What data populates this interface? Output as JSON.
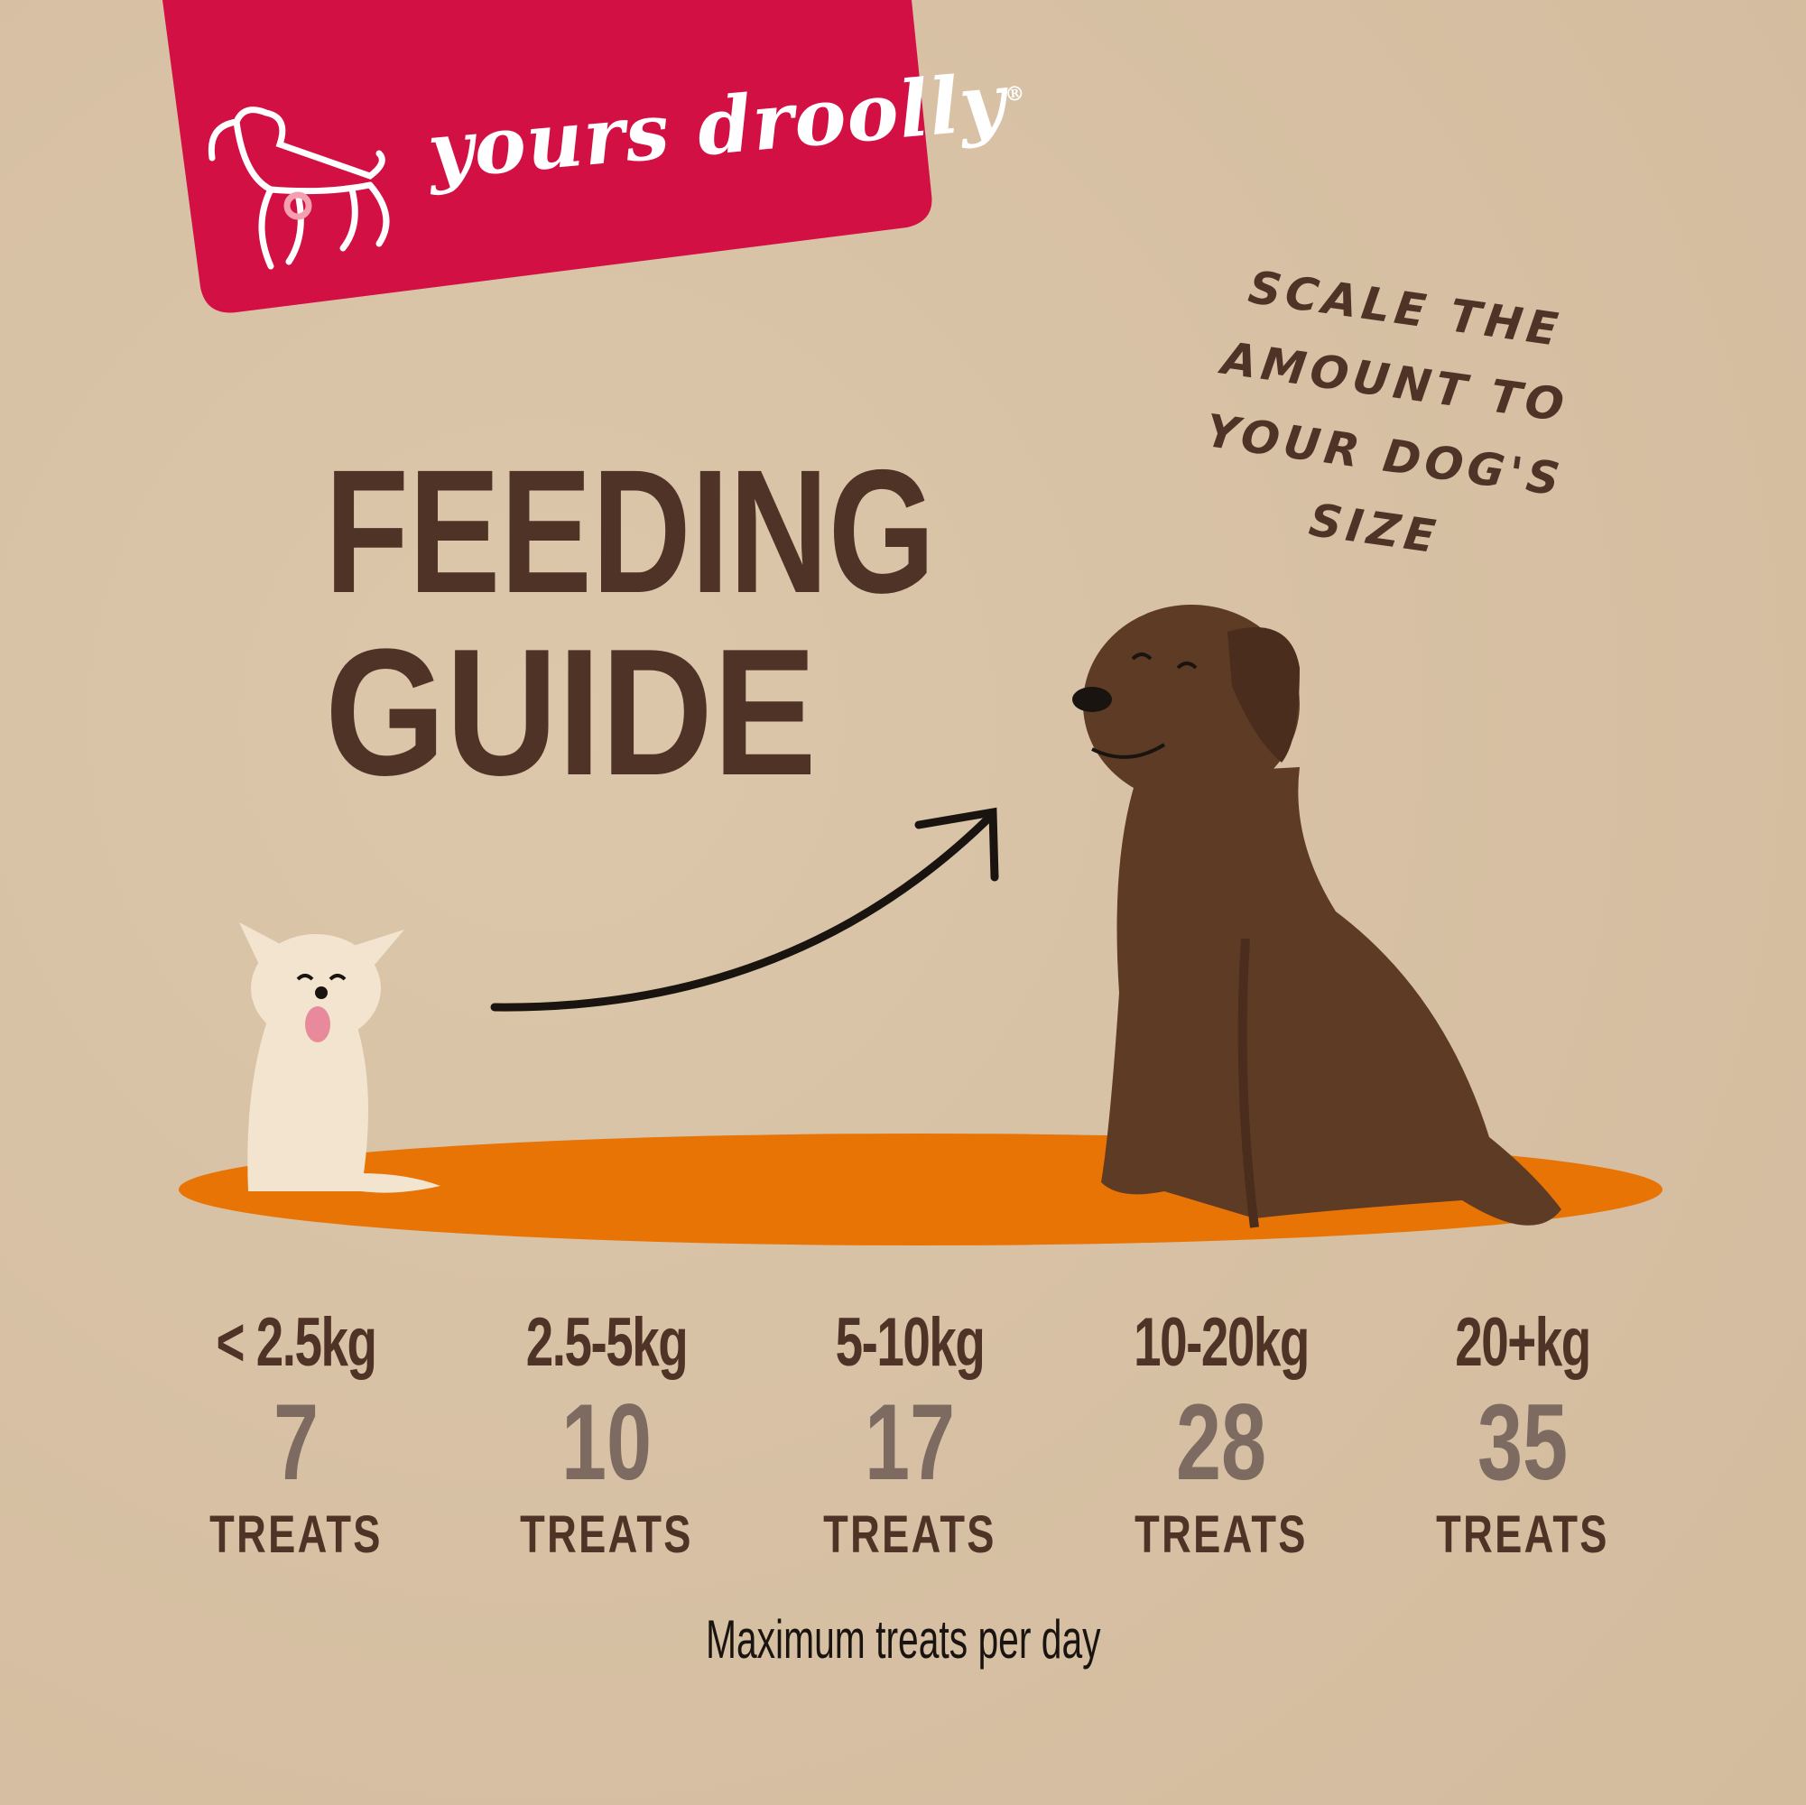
{
  "brand": {
    "name": "yours droolly",
    "registered_mark": "®",
    "banner_color": "#d21044"
  },
  "title": {
    "line1": "FEEDING",
    "line2": "GUIDE"
  },
  "scale_note": {
    "line1": "SCALE THE",
    "line2": "AMOUNT TO",
    "line3": "YOUR DOG'S SIZE"
  },
  "illustration": {
    "small_dog": "chihuahua-illustration",
    "large_dog": "labrador-illustration",
    "arrow": "curved-arrow",
    "ground_color": "#e87405"
  },
  "guide": [
    {
      "weight": "< 2.5kg",
      "count": "7",
      "unit": "TREATS"
    },
    {
      "weight": "2.5-5kg",
      "count": "10",
      "unit": "TREATS"
    },
    {
      "weight": "5-10kg",
      "count": "17",
      "unit": "TREATS"
    },
    {
      "weight": "10-20kg",
      "count": "28",
      "unit": "TREATS"
    },
    {
      "weight": "20+kg",
      "count": "35",
      "unit": "TREATS"
    }
  ],
  "footer": "Maximum treats per day"
}
